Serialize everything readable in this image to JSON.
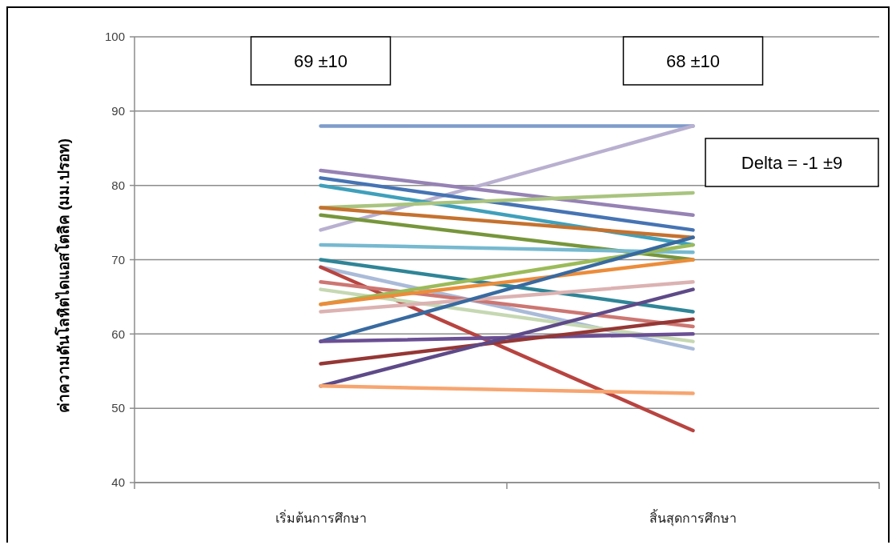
{
  "chart_data": {
    "type": "line",
    "ylabel": "ค่าความดันโลหิตไดแอสโตลิค (มม.ปรอท)",
    "categories": [
      "เริ่มต้นการศึกษา",
      "สิ้นสุดการศึกษา"
    ],
    "ylim": [
      40,
      100
    ],
    "yticks": [
      40,
      50,
      60,
      70,
      80,
      90,
      100
    ],
    "grid": "y",
    "marker": "none",
    "line_style": "solid",
    "annotations": [
      "69 ±10",
      "68 ±10",
      "Delta = -1 ±9"
    ],
    "series": [
      {
        "color": "#7f9ccb",
        "values": [
          88,
          88
        ]
      },
      {
        "color": "#b9b0d0",
        "values": [
          74,
          88
        ]
      },
      {
        "color": "#9682b4",
        "values": [
          82,
          76
        ]
      },
      {
        "color": "#4674b4",
        "values": [
          81,
          74
        ]
      },
      {
        "color": "#3fa0bb",
        "values": [
          80,
          72
        ]
      },
      {
        "color": "#a9c47f",
        "values": [
          77,
          79
        ]
      },
      {
        "color": "#c5722f",
        "values": [
          77,
          73
        ]
      },
      {
        "color": "#77963c",
        "values": [
          76,
          70
        ]
      },
      {
        "color": "#76b9d0",
        "values": [
          72,
          71
        ]
      },
      {
        "color": "#2f8597",
        "values": [
          70,
          63
        ]
      },
      {
        "color": "#aabbd9",
        "values": [
          69,
          58
        ]
      },
      {
        "color": "#b84440",
        "values": [
          69,
          47
        ]
      },
      {
        "color": "#cd7672",
        "values": [
          67,
          61
        ]
      },
      {
        "color": "#c6d8b2",
        "values": [
          66,
          59
        ]
      },
      {
        "color": "#9bbb59",
        "values": [
          64,
          72
        ]
      },
      {
        "color": "#ec8c3a",
        "values": [
          64,
          70
        ]
      },
      {
        "color": "#dcb2b2",
        "values": [
          63,
          67
        ]
      },
      {
        "color": "#386aa0",
        "values": [
          59,
          73
        ]
      },
      {
        "color": "#6b4f94",
        "values": [
          59,
          60
        ]
      },
      {
        "color": "#953735",
        "values": [
          56,
          62
        ]
      },
      {
        "color": "#5e4a88",
        "values": [
          53,
          66
        ]
      },
      {
        "color": "#f7a570",
        "values": [
          53,
          52
        ]
      }
    ]
  }
}
